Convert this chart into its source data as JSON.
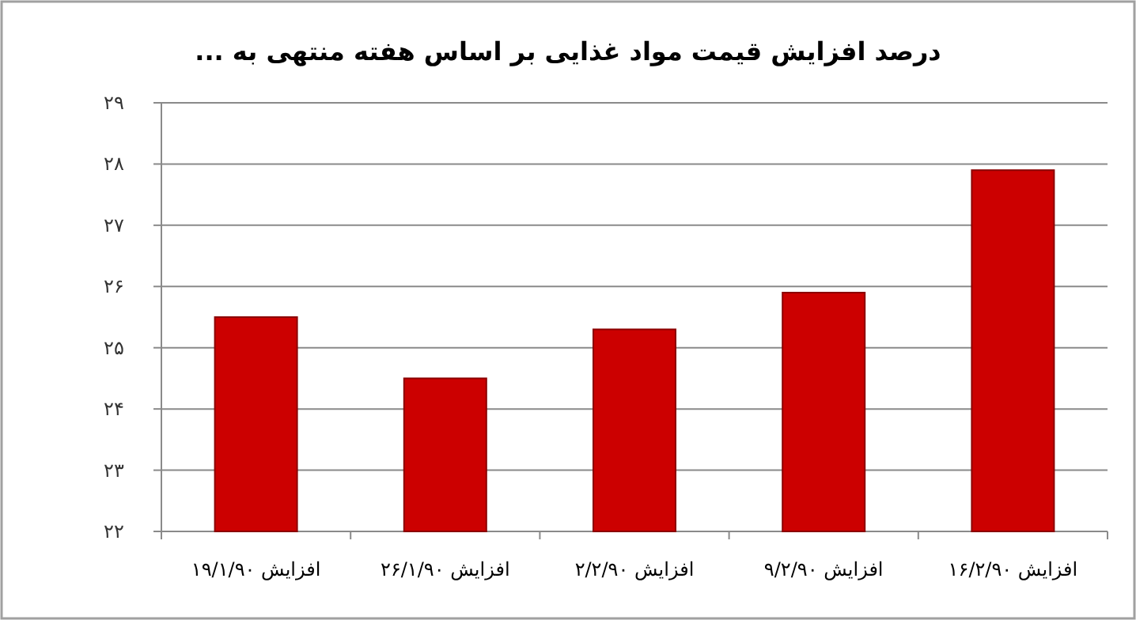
{
  "chart_data": {
    "type": "bar",
    "title": "درصد افزایش قیمت مواد غذایی بر اساس هفته منتهی به ...",
    "categories": [
      "افزایش ۱۹/۱/۹۰",
      "افزایش ۲۶/۱/۹۰",
      "افزایش ۲/۲/۹۰",
      "افزایش ۹/۲/۹۰",
      "افزایش ۱۶/۲/۹۰"
    ],
    "values": [
      25.5,
      24.5,
      25.3,
      25.9,
      27.9
    ],
    "color": "#cc0000",
    "ylim": [
      22,
      29
    ],
    "yticks": [
      {
        "value": 22,
        "label": "۲۲"
      },
      {
        "value": 23,
        "label": "۲۳"
      },
      {
        "value": 24,
        "label": "۲۴"
      },
      {
        "value": 25,
        "label": "۲۵"
      },
      {
        "value": 26,
        "label": "۲۶"
      },
      {
        "value": 27,
        "label": "۲۷"
      },
      {
        "value": 28,
        "label": "۲۸"
      },
      {
        "value": 29,
        "label": "۲۹"
      }
    ],
    "grid": "y"
  }
}
